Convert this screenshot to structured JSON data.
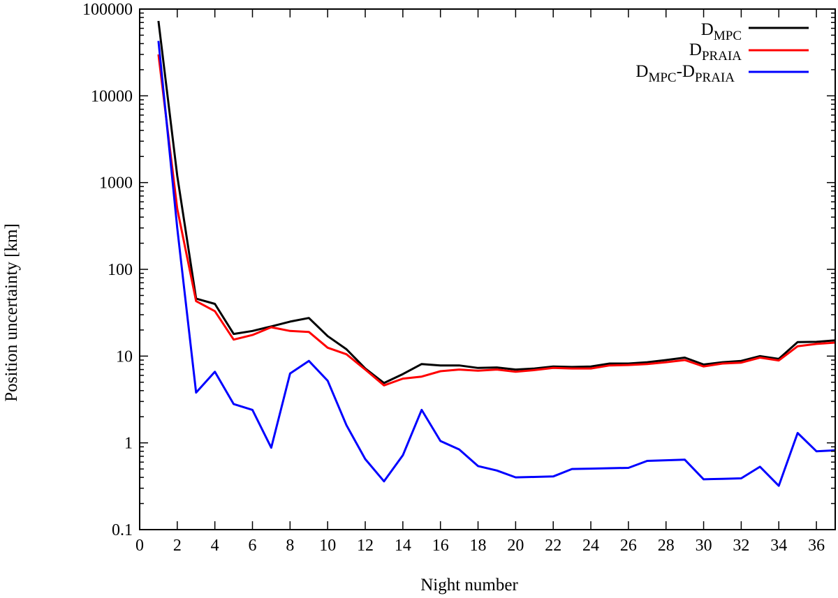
{
  "chart_data": {
    "type": "line",
    "title": "",
    "xlabel": "Night number",
    "ylabel": "Position uncertainty [km]",
    "xlim": [
      0,
      37
    ],
    "ylim": [
      0.1,
      100000
    ],
    "yscale": "log",
    "grid": false,
    "legend_position": "top-right",
    "x_ticks": [
      "0",
      "2",
      "4",
      "6",
      "8",
      "10",
      "12",
      "14",
      "16",
      "18",
      "20",
      "22",
      "24",
      "26",
      "28",
      "30",
      "32",
      "34",
      "36"
    ],
    "y_ticks": [
      "0.1",
      "1",
      "10",
      "100",
      "1000",
      "10000",
      "100000"
    ],
    "x": [
      1,
      2,
      3,
      4,
      5,
      6,
      7,
      8,
      9,
      10,
      11,
      12,
      13,
      14,
      15,
      16,
      17,
      18,
      19,
      20,
      21,
      22,
      23,
      24,
      25,
      26,
      27,
      28,
      29,
      30,
      31,
      32,
      33,
      34,
      35,
      36,
      37
    ],
    "series": [
      {
        "name_main": "D",
        "name_sub": "MPC",
        "color": "#000000",
        "values": [
          73000,
          1200,
          46,
          40,
          18,
          19.5,
          22,
          25,
          27.5,
          17,
          12,
          7.2,
          4.9,
          6.2,
          8.1,
          7.8,
          7.8,
          7.3,
          7.4,
          7,
          7.2,
          7.6,
          7.5,
          7.6,
          8.2,
          8.2,
          8.5,
          9,
          9.6,
          8,
          8.5,
          8.8,
          10,
          9.3,
          14.5,
          14.6,
          15.2
        ]
      },
      {
        "name_main": "D",
        "name_sub": "PRAIA",
        "color": "#ff0000",
        "values": [
          30000,
          500,
          43,
          33,
          15.5,
          17.5,
          21.5,
          19.5,
          19,
          12.5,
          10.5,
          7,
          4.6,
          5.5,
          5.8,
          6.7,
          7,
          6.8,
          7,
          6.6,
          6.9,
          7.3,
          7.2,
          7.2,
          7.8,
          7.9,
          8.1,
          8.5,
          9,
          7.6,
          8.2,
          8.4,
          9.6,
          8.9,
          13,
          13.8,
          14.3
        ]
      },
      {
        "name_main": "D",
        "name_sub": "MPC",
        "name_mid": "-D",
        "name_sub2": "PRAIA",
        "color": "#0000ff",
        "values": [
          43000,
          300,
          3.8,
          6.6,
          2.8,
          2.4,
          0.88,
          6.3,
          8.8,
          5.2,
          1.6,
          0.65,
          0.36,
          0.72,
          2.4,
          1.05,
          0.84,
          0.54,
          0.48,
          0.4,
          0.405,
          0.41,
          0.5,
          0.505,
          0.51,
          0.515,
          0.62,
          0.63,
          0.64,
          0.38,
          0.385,
          0.39,
          0.53,
          0.32,
          1.3,
          0.8,
          0.82
        ]
      }
    ]
  }
}
